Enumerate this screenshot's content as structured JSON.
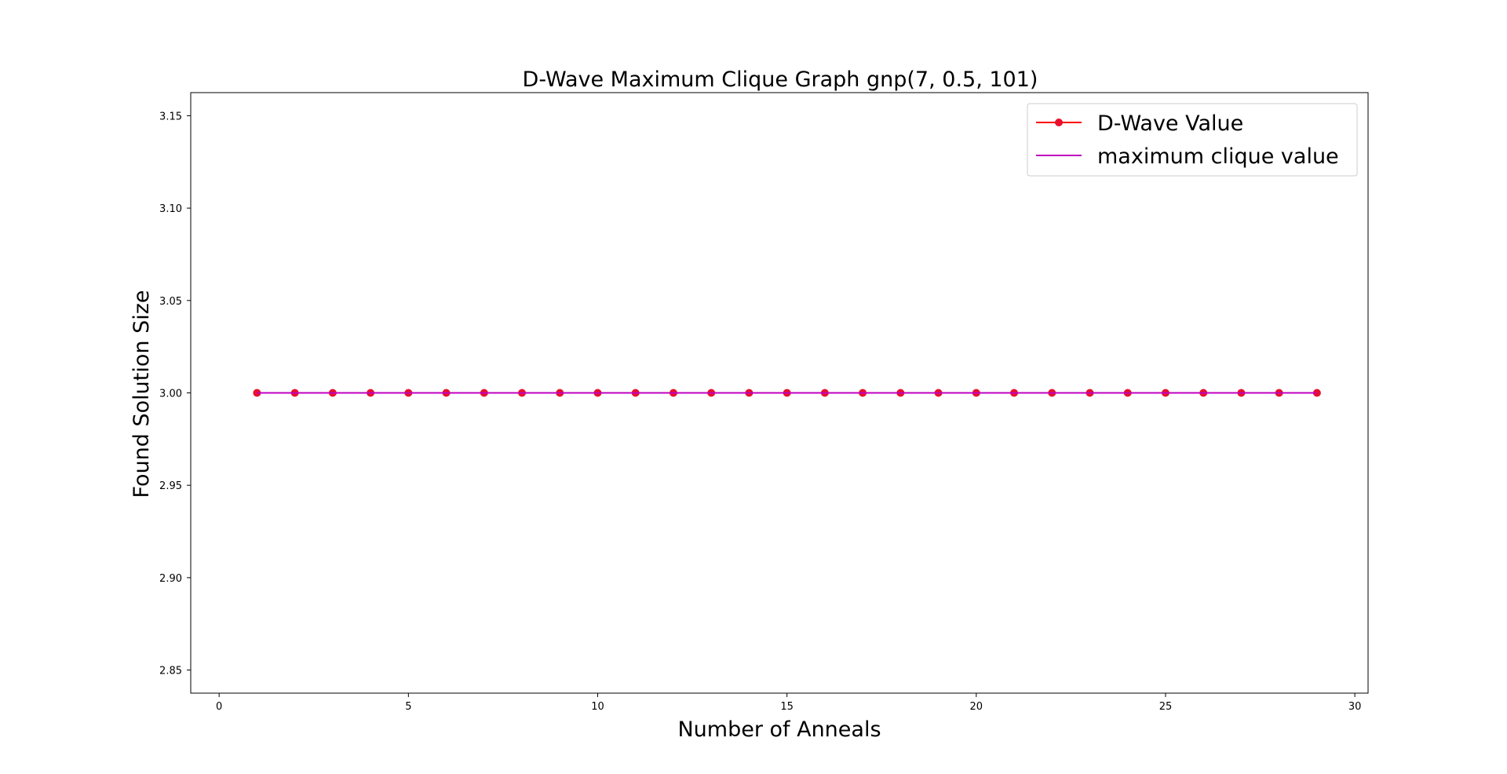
{
  "chart_data": {
    "type": "line",
    "title": "D-Wave Maximum Clique Graph gnp(7, 0.5, 101)",
    "xlabel": "Number of Anneals",
    "ylabel": "Found Solution Size",
    "xlim": [
      -0.75,
      30.35
    ],
    "ylim": [
      2.8375,
      3.1625
    ],
    "xticks": [
      0,
      5,
      10,
      15,
      20,
      25,
      30
    ],
    "yticks": [
      2.85,
      2.9,
      2.95,
      3.0,
      3.05,
      3.1,
      3.15
    ],
    "ytick_labels": [
      "2.85",
      "2.90",
      "2.95",
      "3.00",
      "3.05",
      "3.10",
      "3.15"
    ],
    "grid": false,
    "legend_position": "top-right",
    "series": [
      {
        "name": "D-Wave Value",
        "color": "#ff0000",
        "marker_color": "#e8102c",
        "marker": "circle",
        "x": [
          1,
          2,
          3,
          4,
          5,
          6,
          7,
          8,
          9,
          10,
          11,
          12,
          13,
          14,
          15,
          16,
          17,
          18,
          19,
          20,
          21,
          22,
          23,
          24,
          25,
          26,
          27,
          28,
          29
        ],
        "y": [
          3,
          3,
          3,
          3,
          3,
          3,
          3,
          3,
          3,
          3,
          3,
          3,
          3,
          3,
          3,
          3,
          3,
          3,
          3,
          3,
          3,
          3,
          3,
          3,
          3,
          3,
          3,
          3,
          3
        ]
      },
      {
        "name": "maximum clique value",
        "color": "#bf00bf",
        "marker": "none",
        "x": [
          1,
          2,
          3,
          4,
          5,
          6,
          7,
          8,
          9,
          10,
          11,
          12,
          13,
          14,
          15,
          16,
          17,
          18,
          19,
          20,
          21,
          22,
          23,
          24,
          25,
          26,
          27,
          28,
          29
        ],
        "y": [
          3,
          3,
          3,
          3,
          3,
          3,
          3,
          3,
          3,
          3,
          3,
          3,
          3,
          3,
          3,
          3,
          3,
          3,
          3,
          3,
          3,
          3,
          3,
          3,
          3,
          3,
          3,
          3,
          3
        ]
      }
    ]
  }
}
